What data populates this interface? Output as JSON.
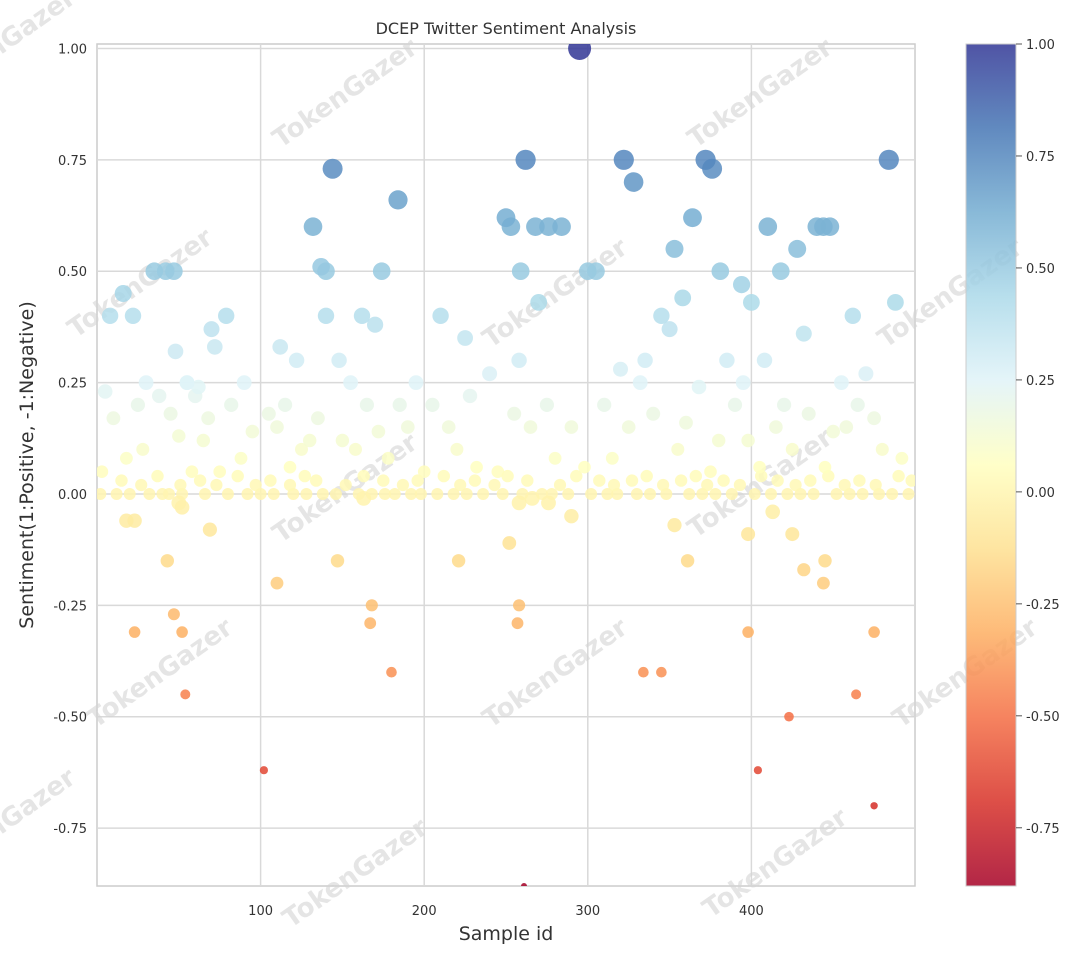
{
  "watermark": "TokenGazer",
  "chart_data": {
    "type": "scatter",
    "title": "DCEP Twitter Sentiment Analysis",
    "xlabel": "Sample id",
    "ylabel": "Sentiment(1:Positive, -1:Negative)",
    "xlim": [
      0,
      500
    ],
    "ylim": [
      -0.88,
      1.01
    ],
    "xticks": [
      100,
      200,
      300,
      400
    ],
    "xtick_labels": [
      "100",
      "200",
      "300",
      "400"
    ],
    "yticks": [
      1.0,
      0.75,
      0.5,
      0.25,
      0.0,
      -0.25,
      -0.5,
      -0.75
    ],
    "ytick_labels": [
      "1.00",
      "0.75",
      "0.50",
      "0.25",
      "0.00",
      "-0.25",
      "-0.50",
      "-0.75"
    ],
    "grid": true,
    "colormap": "RdYlBu",
    "colorbar": {
      "range": [
        -0.88,
        1.0
      ],
      "ticks": [
        1.0,
        0.75,
        0.5,
        0.25,
        0.0,
        -0.25,
        -0.5,
        -0.75
      ],
      "tick_labels": [
        "1.00",
        "0.75",
        "0.50",
        "0.25",
        "0.00",
        "-0.25",
        "-0.50",
        "-0.75"
      ],
      "stops": [
        "#a50026",
        "#d73027",
        "#f46d43",
        "#fdae61",
        "#fee090",
        "#ffffbf",
        "#e0f3f8",
        "#abd9e9",
        "#74add1",
        "#4575b4",
        "#313695"
      ]
    },
    "x": [
      8,
      16,
      22,
      35,
      42,
      47,
      48,
      55,
      62,
      70,
      79,
      132,
      137,
      140,
      144,
      162,
      174,
      184,
      250,
      253,
      259,
      262,
      268,
      276,
      284,
      295,
      300,
      322,
      328,
      335,
      345,
      353,
      358,
      364,
      372,
      376,
      381,
      394,
      400,
      410,
      418,
      428,
      440,
      444,
      448,
      462,
      484,
      5,
      30,
      55,
      72,
      90,
      112,
      122,
      140,
      148,
      155,
      170,
      195,
      210,
      225,
      240,
      258,
      270,
      305,
      320,
      332,
      350,
      368,
      385,
      395,
      408,
      420,
      432,
      455,
      470,
      488,
      3,
      10,
      18,
      25,
      28,
      38,
      45,
      50,
      58,
      60,
      65,
      68,
      75,
      82,
      88,
      95,
      105,
      110,
      115,
      118,
      125,
      130,
      135,
      150,
      158,
      165,
      172,
      178,
      185,
      190,
      200,
      205,
      215,
      220,
      228,
      232,
      245,
      255,
      265,
      275,
      280,
      290,
      298,
      310,
      315,
      325,
      340,
      355,
      360,
      375,
      380,
      390,
      398,
      405,
      415,
      425,
      435,
      445,
      450,
      458,
      465,
      475,
      480,
      492,
      2,
      12,
      20,
      32,
      40,
      44,
      52,
      66,
      80,
      92,
      100,
      108,
      120,
      128,
      138,
      146,
      160,
      168,
      176,
      182,
      192,
      198,
      208,
      218,
      226,
      236,
      248,
      260,
      272,
      278,
      288,
      302,
      312,
      318,
      330,
      338,
      348,
      362,
      370,
      378,
      388,
      402,
      412,
      422,
      430,
      438,
      452,
      460,
      468,
      478,
      486,
      496,
      15,
      27,
      37,
      51,
      63,
      73,
      86,
      97,
      106,
      118,
      127,
      134,
      152,
      163,
      175,
      187,
      196,
      212,
      222,
      231,
      243,
      251,
      263,
      283,
      293,
      307,
      316,
      327,
      336,
      346,
      357,
      366,
      373,
      383,
      393,
      406,
      416,
      427,
      436,
      447,
      457,
      466,
      476,
      490,
      498,
      18,
      23,
      43,
      50,
      52,
      69,
      110,
      147,
      163,
      221,
      252,
      258,
      266,
      276,
      290,
      353,
      361,
      398,
      413,
      425,
      432,
      444,
      445,
      23,
      47,
      52,
      54,
      168,
      167,
      180,
      258,
      257,
      334,
      345,
      398,
      423,
      464,
      475,
      102,
      404,
      475,
      261
    ],
    "y": [
      0.4,
      0.45,
      0.4,
      0.5,
      0.5,
      0.5,
      0.32,
      0.25,
      0.24,
      0.37,
      0.4,
      0.6,
      0.51,
      0.5,
      0.73,
      0.4,
      0.5,
      0.66,
      0.62,
      0.6,
      0.5,
      0.75,
      0.6,
      0.6,
      0.6,
      1.0,
      0.5,
      0.75,
      0.7,
      0.3,
      0.4,
      0.55,
      0.44,
      0.62,
      0.75,
      0.73,
      0.5,
      0.47,
      0.43,
      0.6,
      0.5,
      0.55,
      0.6,
      0.6,
      0.6,
      0.4,
      0.75,
      0.23,
      0.25,
      0.25,
      0.33,
      0.25,
      0.33,
      0.3,
      0.4,
      0.3,
      0.25,
      0.38,
      0.25,
      0.4,
      0.35,
      0.27,
      0.3,
      0.43,
      0.5,
      0.28,
      0.25,
      0.37,
      0.24,
      0.3,
      0.25,
      0.3,
      0.2,
      0.36,
      0.25,
      0.27,
      0.43,
      0.05,
      0.17,
      0.08,
      0.2,
      0.1,
      0.22,
      0.18,
      0.13,
      0.05,
      0.22,
      0.12,
      0.17,
      0.05,
      0.2,
      0.08,
      0.14,
      0.18,
      0.15,
      0.2,
      0.06,
      0.1,
      0.12,
      0.17,
      0.12,
      0.1,
      0.2,
      0.14,
      0.08,
      0.2,
      0.15,
      0.05,
      0.2,
      0.15,
      0.1,
      0.22,
      0.06,
      0.05,
      0.18,
      0.15,
      0.2,
      0.08,
      0.15,
      0.06,
      0.2,
      0.08,
      0.15,
      0.18,
      0.1,
      0.16,
      0.05,
      0.12,
      0.2,
      0.12,
      0.06,
      0.15,
      0.1,
      0.18,
      0.06,
      0.14,
      0.15,
      0.2,
      0.17,
      0.1,
      0.08,
      0.0,
      0.0,
      0.0,
      0.0,
      0.0,
      0.0,
      0.0,
      0.0,
      0.0,
      0.0,
      0.0,
      0.0,
      0.0,
      0.0,
      0.0,
      0.0,
      0.0,
      0.0,
      0.0,
      0.0,
      0.0,
      0.0,
      0.0,
      0.0,
      0.0,
      0.0,
      0.0,
      0.0,
      0.0,
      0.0,
      0.0,
      0.0,
      0.0,
      0.0,
      0.0,
      0.0,
      0.0,
      0.0,
      0.0,
      0.0,
      0.0,
      0.0,
      0.0,
      0.0,
      0.0,
      0.0,
      0.0,
      0.0,
      0.0,
      0.0,
      0.0,
      0.0,
      0.03,
      0.02,
      0.04,
      0.02,
      0.03,
      0.02,
      0.04,
      0.02,
      0.03,
      0.02,
      0.04,
      0.03,
      0.02,
      0.04,
      0.03,
      0.02,
      0.03,
      0.04,
      0.02,
      0.03,
      0.02,
      0.04,
      0.03,
      0.02,
      0.04,
      0.03,
      0.02,
      0.03,
      0.04,
      0.02,
      0.03,
      0.04,
      0.02,
      0.03,
      0.02,
      0.04,
      0.03,
      0.02,
      0.03,
      0.04,
      0.02,
      0.03,
      0.02,
      0.04,
      0.03,
      -0.06,
      -0.06,
      -0.15,
      -0.02,
      -0.03,
      -0.08,
      -0.2,
      -0.15,
      -0.01,
      -0.15,
      -0.11,
      -0.02,
      -0.01,
      -0.02,
      -0.05,
      -0.07,
      -0.15,
      -0.09,
      -0.04,
      -0.09,
      -0.17,
      -0.2,
      -0.15,
      -0.31,
      -0.27,
      -0.31,
      -0.45,
      -0.25,
      -0.29,
      -0.4,
      -0.25,
      -0.29,
      -0.4,
      -0.4,
      -0.31,
      -0.5,
      -0.45,
      -0.31,
      -0.62,
      -0.62,
      -0.7,
      -0.88
    ]
  }
}
